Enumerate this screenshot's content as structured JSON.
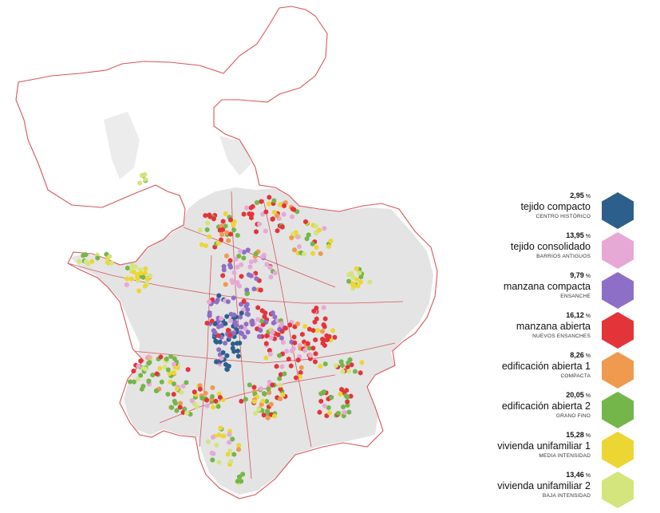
{
  "legend": {
    "unit": "%",
    "items": [
      {
        "pct": "2,95",
        "name": "tejido compacto",
        "sub": "CENTRO HISTÓRICO",
        "color": "#2d5f8c",
        "icon": "hexagon-texture-icon"
      },
      {
        "pct": "13,95",
        "name": "tejido consolidado",
        "sub": "BARRIOS ANTIGUOS",
        "color": "#e6a9d6",
        "icon": "hexagon-texture-icon"
      },
      {
        "pct": "9,79",
        "name": "manzana compacta",
        "sub": "ENSANCHE",
        "color": "#8d6fc7",
        "icon": "hexagon-texture-icon"
      },
      {
        "pct": "16,12",
        "name": "manzana abierta",
        "sub": "NUEVOS ENSANCHES",
        "color": "#e3343a",
        "icon": "hexagon-texture-icon"
      },
      {
        "pct": "8,26",
        "name": "edificación abierta 1",
        "sub": "COMPACTA",
        "color": "#ef9a4f",
        "icon": "hexagon-texture-icon"
      },
      {
        "pct": "20,05",
        "name": "edificación abierta 2",
        "sub": "GRANO FINO",
        "color": "#74b64a",
        "icon": "hexagon-texture-icon"
      },
      {
        "pct": "15,28",
        "name": "vivienda unifamiliar 1",
        "sub": "MEDIA INTENSIDAD",
        "color": "#ecd634",
        "icon": "hexagon-texture-icon"
      },
      {
        "pct": "13,46",
        "name": "vivienda unifamiliar 2",
        "sub": "BAJA INTENSIDAD",
        "color": "#d3e57c",
        "icon": "hexagon-texture-icon"
      }
    ]
  },
  "map": {
    "boundary_color": "#d9555b",
    "builtup_color": "#e4e4e4"
  }
}
